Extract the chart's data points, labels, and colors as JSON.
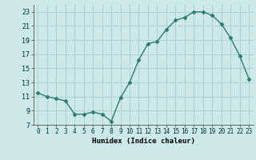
{
  "x": [
    0,
    1,
    2,
    3,
    4,
    5,
    6,
    7,
    8,
    9,
    10,
    11,
    12,
    13,
    14,
    15,
    16,
    17,
    18,
    19,
    20,
    21,
    22,
    23
  ],
  "y": [
    11.5,
    11.0,
    10.7,
    10.4,
    8.5,
    8.5,
    8.8,
    8.5,
    7.5,
    10.8,
    13.0,
    16.2,
    18.5,
    18.8,
    20.5,
    21.8,
    22.2,
    23.0,
    23.0,
    22.5,
    21.3,
    19.3,
    16.8,
    13.5
  ],
  "xlabel": "Humidex (Indice chaleur)",
  "xlim": [
    -0.5,
    23.5
  ],
  "ylim": [
    7,
    24
  ],
  "yticks": [
    7,
    9,
    11,
    13,
    15,
    17,
    19,
    21,
    23
  ],
  "xticks": [
    0,
    1,
    2,
    3,
    4,
    5,
    6,
    7,
    8,
    9,
    10,
    11,
    12,
    13,
    14,
    15,
    16,
    17,
    18,
    19,
    20,
    21,
    22,
    23
  ],
  "line_color": "#2e7d6e",
  "marker": "D",
  "marker_size": 2.5,
  "bg_color": "#cce8e8",
  "grid_color": "#aacccc",
  "spine_color": "#555555"
}
